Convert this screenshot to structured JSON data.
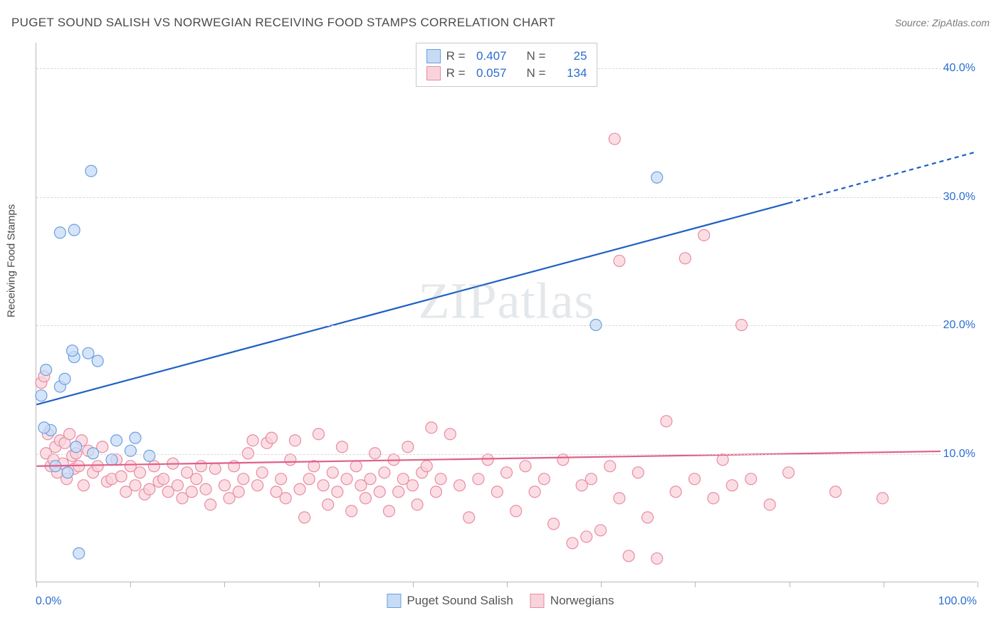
{
  "header": {
    "title": "PUGET SOUND SALISH VS NORWEGIAN RECEIVING FOOD STAMPS CORRELATION CHART",
    "source": "Source: ZipAtlas.com"
  },
  "watermark": {
    "text_a": "ZIP",
    "text_b": "atlas"
  },
  "y_axis_label": "Receiving Food Stamps",
  "chart": {
    "type": "scatter",
    "xlim": [
      0,
      100
    ],
    "ylim": [
      0,
      42
    ],
    "y_gridlines": [
      10,
      20,
      30,
      40
    ],
    "y_tick_labels": [
      "10.0%",
      "20.0%",
      "30.0%",
      "40.0%"
    ],
    "x_ticks": [
      0,
      10,
      20,
      30,
      40,
      50,
      60,
      70,
      80,
      90,
      100
    ],
    "x_tick_labels": {
      "0": "0.0%",
      "100": "100.0%"
    },
    "background_color": "#ffffff",
    "grid_color": "#d8d8d8",
    "axis_color": "#b8b8b8",
    "tick_label_color": "#2a6dd0",
    "marker_radius": 8,
    "marker_stroke_width": 1.2,
    "line_width": 2.2
  },
  "series": {
    "blue": {
      "label": "Puget Sound Salish",
      "fill": "#c7dbf5",
      "stroke": "#6a9fe0",
      "line_color": "#1f5fc4",
      "R": "0.407",
      "N": "25",
      "trend": {
        "x1": 0,
        "y1": 13.8,
        "x2": 80,
        "y2": 29.5,
        "x2_dash": 100,
        "y2_dash": 33.5
      },
      "points": [
        [
          1.5,
          11.8
        ],
        [
          0.8,
          12.0
        ],
        [
          4.2,
          10.5
        ],
        [
          2.5,
          15.2
        ],
        [
          3.0,
          15.8
        ],
        [
          1.0,
          16.5
        ],
        [
          4.0,
          17.5
        ],
        [
          5.5,
          17.8
        ],
        [
          6.5,
          17.2
        ],
        [
          3.8,
          18.0
        ],
        [
          2.5,
          27.2
        ],
        [
          4.0,
          27.4
        ],
        [
          5.8,
          32.0
        ],
        [
          6.0,
          10.0
        ],
        [
          8.0,
          9.5
        ],
        [
          8.5,
          11.0
        ],
        [
          10.0,
          10.2
        ],
        [
          10.5,
          11.2
        ],
        [
          12.0,
          9.8
        ],
        [
          4.5,
          2.2
        ],
        [
          0.5,
          14.5
        ],
        [
          2.0,
          9.0
        ],
        [
          3.3,
          8.5
        ],
        [
          66.0,
          31.5
        ],
        [
          59.5,
          20.0
        ]
      ]
    },
    "pink": {
      "label": "Norwegians",
      "fill": "#f9d3db",
      "stroke": "#e88ba3",
      "line_color": "#e06088",
      "R": "0.057",
      "N": "134",
      "trend": {
        "x1": 0,
        "y1": 9.0,
        "x2": 100,
        "y2": 10.2
      },
      "points": [
        [
          0.5,
          15.5
        ],
        [
          0.8,
          16.0
        ],
        [
          1.0,
          10.0
        ],
        [
          1.2,
          11.5
        ],
        [
          1.5,
          9.0
        ],
        [
          1.8,
          9.5
        ],
        [
          2.0,
          10.5
        ],
        [
          2.2,
          8.5
        ],
        [
          2.5,
          11.0
        ],
        [
          2.8,
          9.2
        ],
        [
          3.0,
          10.8
        ],
        [
          3.2,
          8.0
        ],
        [
          3.5,
          11.5
        ],
        [
          3.8,
          9.8
        ],
        [
          4.0,
          8.8
        ],
        [
          4.2,
          10.0
        ],
        [
          4.5,
          9.0
        ],
        [
          4.8,
          11.0
        ],
        [
          5.0,
          7.5
        ],
        [
          5.5,
          10.2
        ],
        [
          6.0,
          8.5
        ],
        [
          6.5,
          9.0
        ],
        [
          7.0,
          10.5
        ],
        [
          7.5,
          7.8
        ],
        [
          8.0,
          8.0
        ],
        [
          8.5,
          9.5
        ],
        [
          9.0,
          8.2
        ],
        [
          9.5,
          7.0
        ],
        [
          10.0,
          9.0
        ],
        [
          10.5,
          7.5
        ],
        [
          11.0,
          8.5
        ],
        [
          11.5,
          6.8
        ],
        [
          12.0,
          7.2
        ],
        [
          12.5,
          9.0
        ],
        [
          13.0,
          7.8
        ],
        [
          13.5,
          8.0
        ],
        [
          14.0,
          7.0
        ],
        [
          14.5,
          9.2
        ],
        [
          15.0,
          7.5
        ],
        [
          15.5,
          6.5
        ],
        [
          16.0,
          8.5
        ],
        [
          16.5,
          7.0
        ],
        [
          17.0,
          8.0
        ],
        [
          17.5,
          9.0
        ],
        [
          18.0,
          7.2
        ],
        [
          18.5,
          6.0
        ],
        [
          19.0,
          8.8
        ],
        [
          20.0,
          7.5
        ],
        [
          20.5,
          6.5
        ],
        [
          21.0,
          9.0
        ],
        [
          21.5,
          7.0
        ],
        [
          22.0,
          8.0
        ],
        [
          22.5,
          10.0
        ],
        [
          23.0,
          11.0
        ],
        [
          23.5,
          7.5
        ],
        [
          24.0,
          8.5
        ],
        [
          24.5,
          10.8
        ],
        [
          25.0,
          11.2
        ],
        [
          25.5,
          7.0
        ],
        [
          26.0,
          8.0
        ],
        [
          26.5,
          6.5
        ],
        [
          27.0,
          9.5
        ],
        [
          27.5,
          11.0
        ],
        [
          28.0,
          7.2
        ],
        [
          28.5,
          5.0
        ],
        [
          29.0,
          8.0
        ],
        [
          29.5,
          9.0
        ],
        [
          30.0,
          11.5
        ],
        [
          30.5,
          7.5
        ],
        [
          31.0,
          6.0
        ],
        [
          31.5,
          8.5
        ],
        [
          32.0,
          7.0
        ],
        [
          32.5,
          10.5
        ],
        [
          33.0,
          8.0
        ],
        [
          33.5,
          5.5
        ],
        [
          34.0,
          9.0
        ],
        [
          34.5,
          7.5
        ],
        [
          35.0,
          6.5
        ],
        [
          35.5,
          8.0
        ],
        [
          36.0,
          10.0
        ],
        [
          36.5,
          7.0
        ],
        [
          37.0,
          8.5
        ],
        [
          37.5,
          5.5
        ],
        [
          38.0,
          9.5
        ],
        [
          38.5,
          7.0
        ],
        [
          39.0,
          8.0
        ],
        [
          39.5,
          10.5
        ],
        [
          40.0,
          7.5
        ],
        [
          40.5,
          6.0
        ],
        [
          41.0,
          8.5
        ],
        [
          41.5,
          9.0
        ],
        [
          42.0,
          12.0
        ],
        [
          42.5,
          7.0
        ],
        [
          43.0,
          8.0
        ],
        [
          44.0,
          11.5
        ],
        [
          45.0,
          7.5
        ],
        [
          46.0,
          5.0
        ],
        [
          47.0,
          8.0
        ],
        [
          48.0,
          9.5
        ],
        [
          49.0,
          7.0
        ],
        [
          50.0,
          8.5
        ],
        [
          51.0,
          5.5
        ],
        [
          52.0,
          9.0
        ],
        [
          53.0,
          7.0
        ],
        [
          54.0,
          8.0
        ],
        [
          55.0,
          4.5
        ],
        [
          56.0,
          9.5
        ],
        [
          57.0,
          3.0
        ],
        [
          58.0,
          7.5
        ],
        [
          58.5,
          3.5
        ],
        [
          59.0,
          8.0
        ],
        [
          60.0,
          4.0
        ],
        [
          61.0,
          9.0
        ],
        [
          62.0,
          6.5
        ],
        [
          63.0,
          2.0
        ],
        [
          64.0,
          8.5
        ],
        [
          65.0,
          5.0
        ],
        [
          66.0,
          1.8
        ],
        [
          67.0,
          12.5
        ],
        [
          68.0,
          7.0
        ],
        [
          69.0,
          25.2
        ],
        [
          70.0,
          8.0
        ],
        [
          71.0,
          27.0
        ],
        [
          72.0,
          6.5
        ],
        [
          73.0,
          9.5
        ],
        [
          74.0,
          7.5
        ],
        [
          75.0,
          20.0
        ],
        [
          76.0,
          8.0
        ],
        [
          62.0,
          25.0
        ],
        [
          61.5,
          34.5
        ],
        [
          78.0,
          6.0
        ],
        [
          80.0,
          8.5
        ],
        [
          85.0,
          7.0
        ],
        [
          90.0,
          6.5
        ]
      ]
    }
  },
  "bottom_legend": {
    "items": [
      {
        "swatch_fill": "#c7dbf5",
        "swatch_stroke": "#6a9fe0",
        "label": "Puget Sound Salish"
      },
      {
        "swatch_fill": "#f9d3db",
        "swatch_stroke": "#e88ba3",
        "label": "Norwegians"
      }
    ]
  },
  "stats_legend": {
    "r_label": "R =",
    "n_label": "N ="
  }
}
